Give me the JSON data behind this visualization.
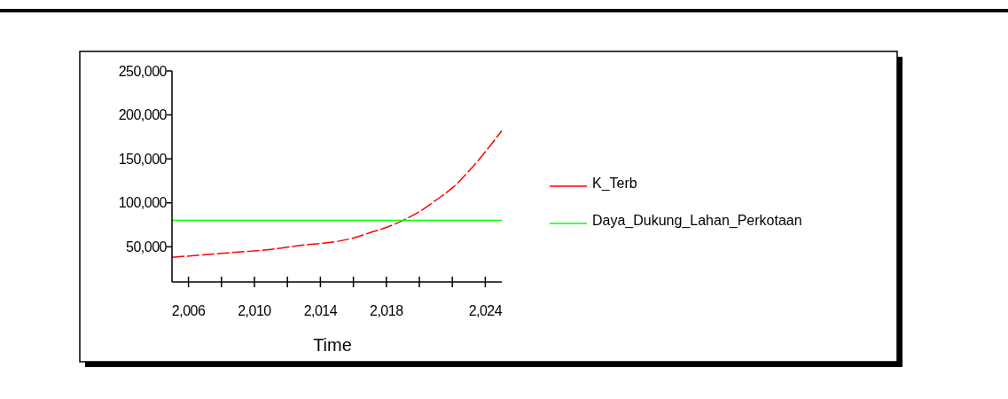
{
  "chart_data": {
    "type": "line",
    "xlabel": "Time",
    "x": [
      2005,
      2007,
      2009,
      2011,
      2013,
      2015,
      2016,
      2017,
      2018,
      2019,
      2020,
      2021,
      2022,
      2023,
      2024,
      2025
    ],
    "series": [
      {
        "name": "K_Terb",
        "color": "#ff0000",
        "values": [
          38000,
          41000,
          44000,
          47000,
          52000,
          56000,
          60000,
          66000,
          72000,
          80000,
          90000,
          103000,
          117000,
          136000,
          158000,
          182000
        ],
        "line_style": "dashed"
      },
      {
        "name": "Daya_Dukung_Lahan_Perkotaan",
        "color": "#00ff00",
        "values": [
          80000,
          80000,
          80000,
          80000,
          80000,
          80000,
          80000,
          80000,
          80000,
          80000,
          80000,
          80000,
          80000,
          80000,
          80000,
          80000
        ],
        "line_style": "solid"
      }
    ],
    "xlim": [
      2005,
      2025
    ],
    "xticks": [
      {
        "value": 2006,
        "label": "2,006"
      },
      {
        "value": 2008,
        "label": null
      },
      {
        "value": 2010,
        "label": "2,010"
      },
      {
        "value": 2012,
        "label": null
      },
      {
        "value": 2014,
        "label": "2,014"
      },
      {
        "value": 2016,
        "label": null
      },
      {
        "value": 2018,
        "label": "2,018"
      },
      {
        "value": 2020,
        "label": null
      },
      {
        "value": 2022,
        "label": null
      },
      {
        "value": 2024,
        "label": "2,024"
      }
    ],
    "ylim": [
      10000,
      250000
    ],
    "yticks": [
      {
        "value": 50000,
        "label": "50,000"
      },
      {
        "value": 100000,
        "label": "100,000"
      },
      {
        "value": 150000,
        "label": "150,000"
      },
      {
        "value": 200000,
        "label": "200,000"
      },
      {
        "value": 250000,
        "label": "250,000"
      }
    ],
    "grid": false,
    "legend": "right"
  }
}
